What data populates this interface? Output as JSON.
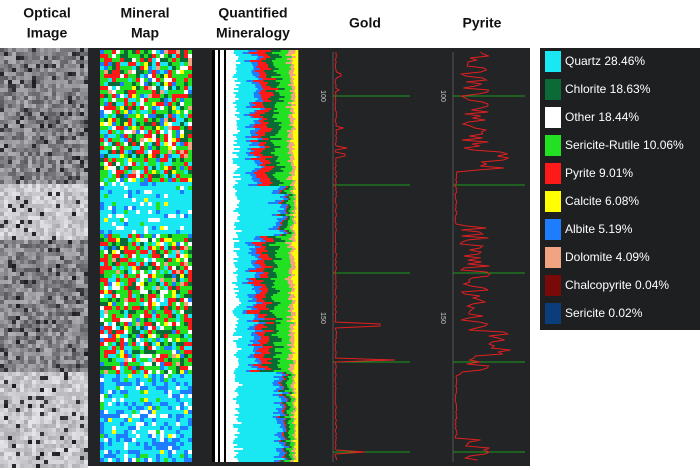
{
  "headers": [
    [
      "Optical",
      "Image"
    ],
    [
      "Mineral",
      "Map"
    ],
    [
      "Quantified",
      "Mineralogy"
    ],
    [
      "Gold"
    ],
    [
      "Pyrite"
    ]
  ],
  "depth_labels": {
    "gold": [
      "100",
      "150"
    ],
    "pyrite": [
      "100",
      "150"
    ]
  },
  "legend": [
    {
      "label": "Quartz 28.46%",
      "color": "#19e8f2"
    },
    {
      "label": "Chlorite 18.63%",
      "color": "#0b6b36"
    },
    {
      "label": "Other 18.44%",
      "color": "#ffffff"
    },
    {
      "label": "Sericite-Rutile 10.06%",
      "color": "#22e022"
    },
    {
      "label": "Pyrite 9.01%",
      "color": "#ff1a1a"
    },
    {
      "label": "Calcite 6.08%",
      "color": "#ffff00"
    },
    {
      "label": "Albite 5.19%",
      "color": "#1e7cff"
    },
    {
      "label": "Dolomite 4.09%",
      "color": "#f2a482"
    },
    {
      "label": "Chalcopyrite 0.04%",
      "color": "#7a0a0a"
    },
    {
      "label": "Sericite 0.02%",
      "color": "#0b3d7a"
    }
  ]
}
